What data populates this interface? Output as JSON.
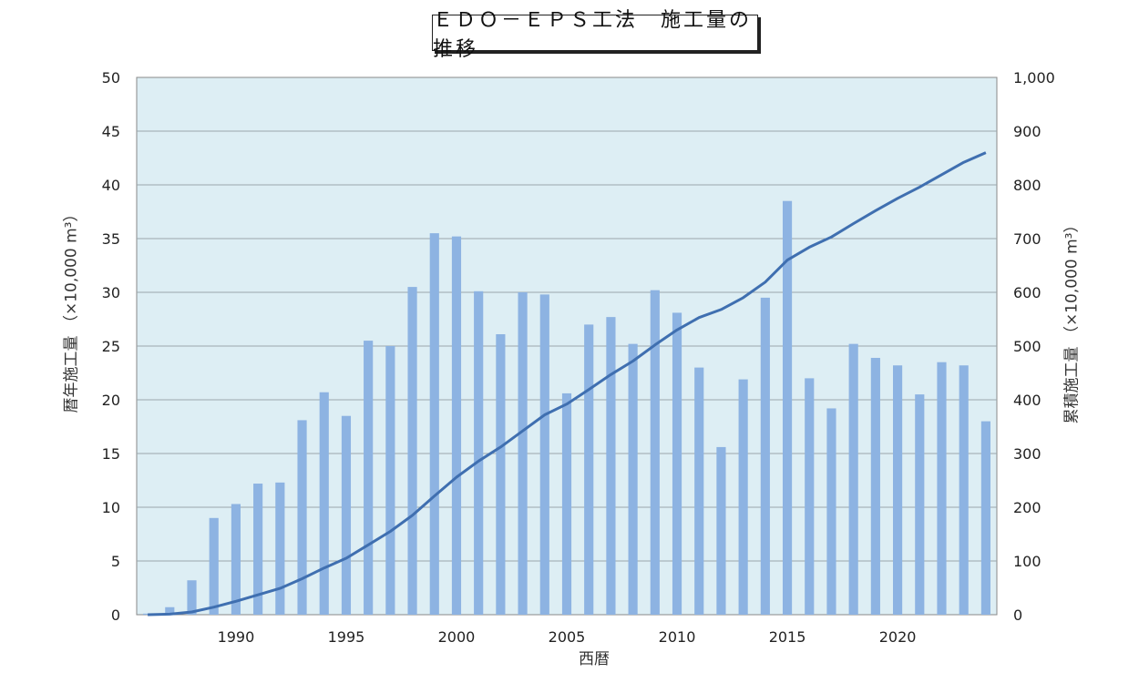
{
  "chart_data": {
    "type": "bar",
    "title": "ＥＤＯ－ＥＰＳ工法　施工量の推移",
    "xlabel": "西暦",
    "ylabel_left": "暦年施工量 （×10,000 m³）",
    "ylabel_right": "累積施工量 （×10,000 m³）",
    "x": [
      1986,
      1987,
      1988,
      1989,
      1990,
      1991,
      1992,
      1993,
      1994,
      1995,
      1996,
      1997,
      1998,
      1999,
      2000,
      2001,
      2002,
      2003,
      2004,
      2005,
      2006,
      2007,
      2008,
      2009,
      2010,
      2011,
      2012,
      2013,
      2014,
      2015,
      2016,
      2017,
      2018,
      2019,
      2020,
      2021,
      2022,
      2023,
      2024
    ],
    "x_ticks": [
      "1990",
      "1995",
      "2000",
      "2005",
      "2010",
      "2015",
      "2020"
    ],
    "ylim_left": [
      0,
      50
    ],
    "ylim_right": [
      0,
      1000
    ],
    "y_ticks_left": [
      "0",
      "5",
      "10",
      "15",
      "20",
      "25",
      "30",
      "35",
      "40",
      "45",
      "50"
    ],
    "y_ticks_right": [
      "0",
      "100",
      "200",
      "300",
      "400",
      "500",
      "600",
      "700",
      "800",
      "900",
      "1,000"
    ],
    "series": [
      {
        "type": "bar",
        "axis": "left",
        "color": "#8db3e2",
        "values": [
          0.1,
          0.7,
          3.2,
          9.0,
          10.3,
          12.2,
          12.3,
          18.1,
          20.7,
          18.5,
          25.5,
          25.0,
          30.5,
          35.5,
          35.2,
          30.1,
          26.1,
          30.0,
          29.8,
          20.6,
          27.0,
          27.7,
          25.2,
          30.2,
          28.1,
          23.0,
          15.6,
          21.9,
          29.5,
          38.5,
          22.0,
          19.2,
          25.2,
          23.9,
          23.2,
          20.5,
          23.5,
          23.2,
          18.0
        ]
      },
      {
        "type": "line",
        "axis": "right",
        "color": "#3f6fb0",
        "values": [
          0,
          1,
          5,
          14,
          25,
          37,
          49,
          67,
          87,
          105,
          130,
          155,
          185,
          221,
          256,
          286,
          312,
          342,
          372,
          392,
          419,
          447,
          472,
          502,
          530,
          553,
          568,
          590,
          619,
          660,
          684,
          703,
          728,
          752,
          775,
          796,
          819,
          842,
          860
        ]
      }
    ],
    "plot_bg": "#ddeef4",
    "grid": true
  }
}
